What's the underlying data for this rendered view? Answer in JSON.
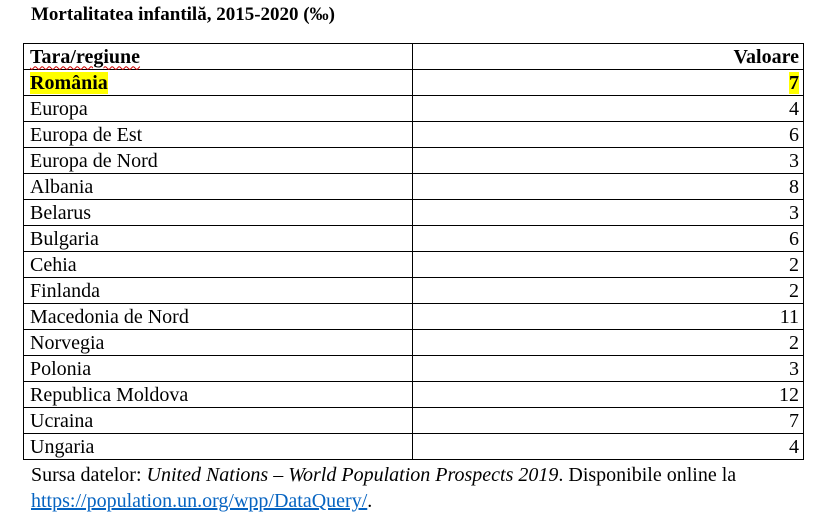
{
  "title": "Mortalitatea infantilă, 2015-2020 (‰)",
  "table": {
    "headers": [
      "Tara/regiune",
      "Valoare"
    ],
    "rows": [
      {
        "name": "România",
        "value": "7",
        "highlight": true
      },
      {
        "name": "Europa",
        "value": "4"
      },
      {
        "name": "Europa de Est",
        "value": "6"
      },
      {
        "name": "Europa de Nord",
        "value": "3"
      },
      {
        "name": "Albania",
        "value": "8"
      },
      {
        "name": "Belarus",
        "value": "3"
      },
      {
        "name": "Bulgaria",
        "value": "6"
      },
      {
        "name": "Cehia",
        "value": "2"
      },
      {
        "name": "Finlanda",
        "value": "2"
      },
      {
        "name": "Macedonia de Nord",
        "value": "11"
      },
      {
        "name": "Norvegia",
        "value": "2"
      },
      {
        "name": "Polonia",
        "value": "3"
      },
      {
        "name": "Republica Moldova",
        "value": "12"
      },
      {
        "name": "Ucraina",
        "value": "7"
      },
      {
        "name": "Ungaria",
        "value": "4"
      }
    ]
  },
  "source": {
    "prefix": "Sursa datelor: ",
    "italic": "United Nations – World Population Prospects 2019",
    "suffix": ". Disponibile online la",
    "link": "https://population.un.org/wpp/DataQuery/",
    "end": "."
  },
  "colors": {
    "highlight": "#ffff00",
    "link": "#0563c1"
  }
}
